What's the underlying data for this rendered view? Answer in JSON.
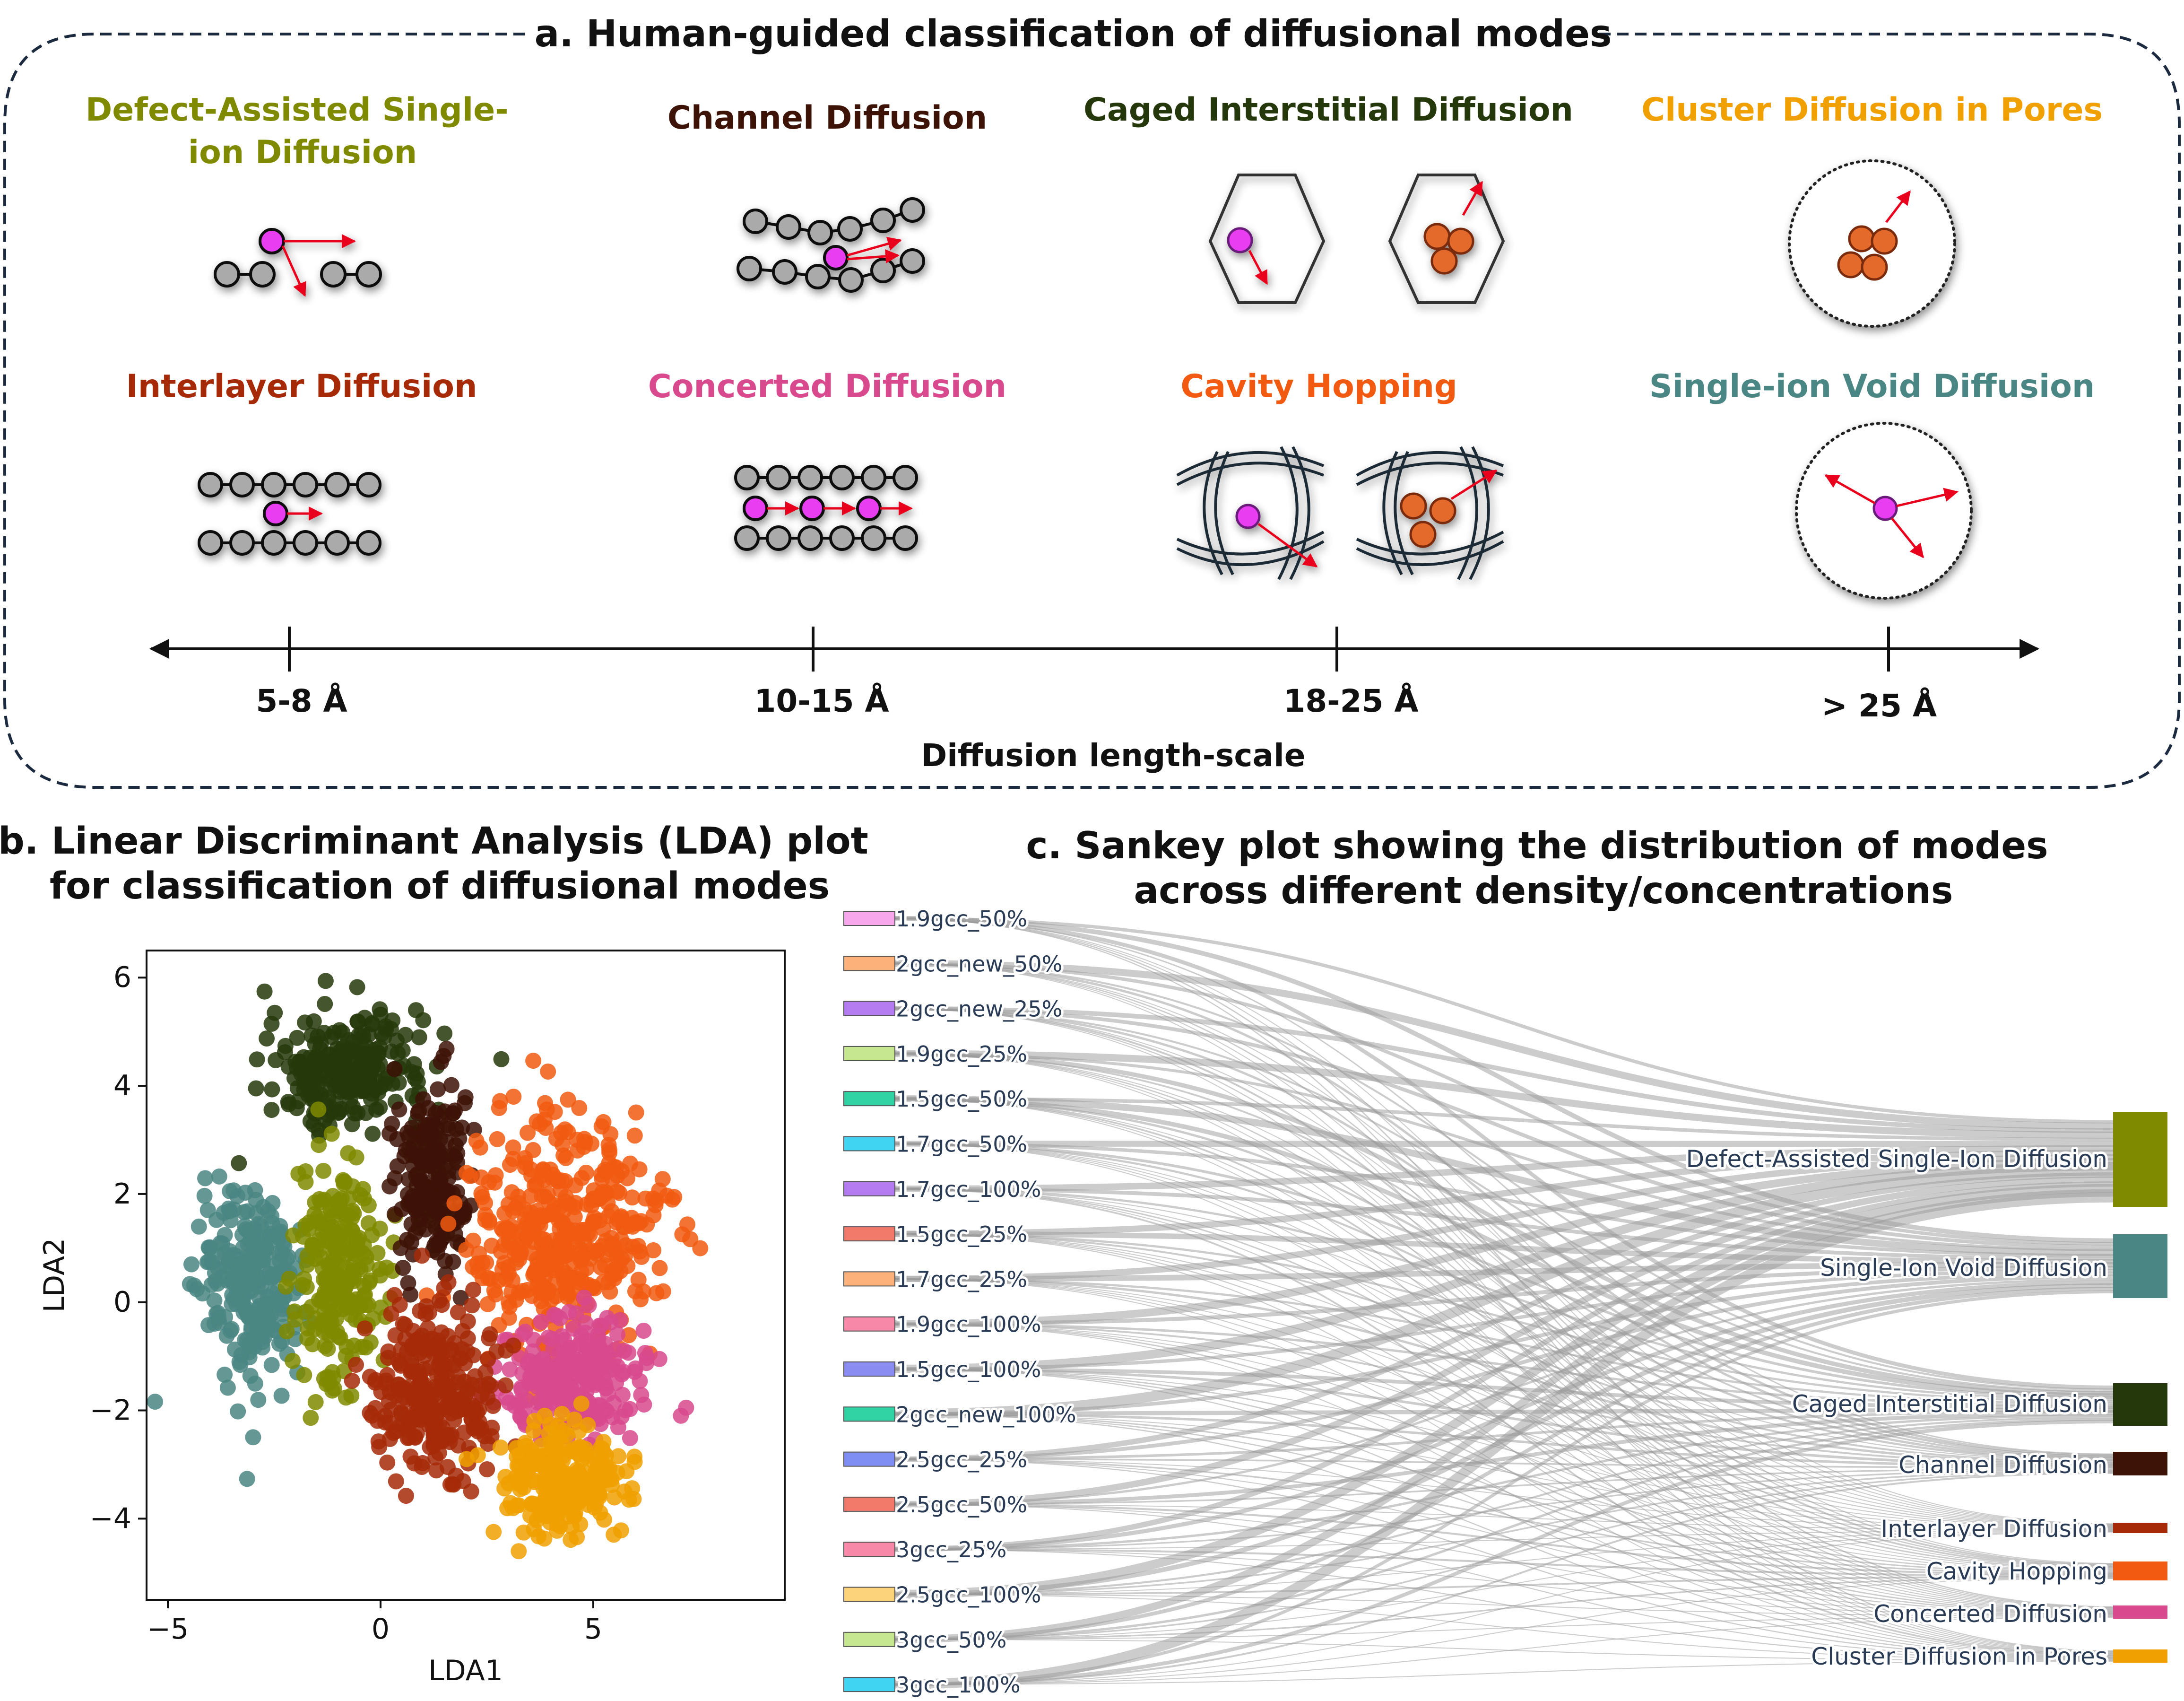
{
  "panel_a": {
    "title": "a. Human-guided classification of diffusional modes",
    "modes": [
      {
        "label_lines": [
          "Defect-Assisted Single-",
          "ion Diffusion"
        ],
        "color": "#7f8a00"
      },
      {
        "label_lines": [
          "Channel Diffusion"
        ],
        "color": "#3d1207"
      },
      {
        "label_lines": [
          "Caged Interstitial Diffusion"
        ],
        "color": "#24380b"
      },
      {
        "label_lines": [
          "Cluster Diffusion in Pores"
        ],
        "color": "#f0a000"
      },
      {
        "label_lines": [
          "Interlayer Diffusion"
        ],
        "color": "#a62a08"
      },
      {
        "label_lines": [
          "Concerted Diffusion"
        ],
        "color": "#d8498d"
      },
      {
        "label_lines": [
          "Cavity Hopping"
        ],
        "color": "#f15a10"
      },
      {
        "label_lines": [
          "Single-ion Void Diffusion"
        ],
        "color": "#4a8683"
      }
    ],
    "axis_ticks": [
      "5-8 Å",
      "10-15 Å",
      "18-25 Å",
      "> 25 Å"
    ],
    "axis_label": "Diffusion length-scale"
  },
  "panel_b": {
    "title_lines": [
      "b. Linear Discriminant Analysis (LDA) plot",
      "for classification of diffusional modes"
    ]
  },
  "panel_c": {
    "title_lines": [
      "c. Sankey plot showing the distribution of modes",
      "across different density/concentrations"
    ]
  },
  "chart_data": [
    {
      "type": "scatter",
      "title": "b. Linear Discriminant Analysis (LDA) plot for classification of diffusional modes",
      "xlabel": "LDA1",
      "ylabel": "LDA2",
      "xlim": [
        -5.5,
        9.5
      ],
      "ylim": [
        -5.5,
        6.5
      ],
      "xticks": [
        -5,
        0,
        5
      ],
      "yticks": [
        -4,
        -2,
        0,
        2,
        4,
        6
      ],
      "xtick_labels": [
        "−5",
        "0",
        "5"
      ],
      "ytick_labels": [
        "−4",
        "−2",
        "0",
        "2",
        "4",
        "6"
      ],
      "grid": false,
      "series": [
        {
          "name": "Caged Interstitial Diffusion",
          "color": "#24380b",
          "center": [
            -0.8,
            4.3
          ],
          "spread": [
            1.7,
            0.9
          ],
          "count": 260
        },
        {
          "name": "Single-Ion Void Diffusion",
          "color": "#4a8683",
          "center": [
            -3.0,
            0.3
          ],
          "spread": [
            1.1,
            1.6
          ],
          "count": 260
        },
        {
          "name": "Defect-Assisted Single-Ion Diffusion",
          "color": "#7f8a00",
          "center": [
            -1.0,
            0.6
          ],
          "spread": [
            0.9,
            1.9
          ],
          "count": 230
        },
        {
          "name": "Channel Diffusion",
          "color": "#3d1207",
          "center": [
            1.2,
            2.3
          ],
          "spread": [
            0.8,
            1.5
          ],
          "count": 200
        },
        {
          "name": "Cavity Hopping",
          "color": "#f15a10",
          "center": [
            4.3,
            1.3
          ],
          "spread": [
            2.0,
            1.9
          ],
          "count": 420
        },
        {
          "name": "Concerted Diffusion",
          "color": "#d8498d",
          "center": [
            4.6,
            -1.4
          ],
          "spread": [
            1.6,
            1.0
          ],
          "count": 240
        },
        {
          "name": "Interlayer Diffusion",
          "color": "#a62a08",
          "center": [
            1.3,
            -1.7
          ],
          "spread": [
            1.3,
            1.4
          ],
          "count": 280
        },
        {
          "name": "Cluster Diffusion in Pores",
          "color": "#f0a000",
          "center": [
            4.3,
            -3.3
          ],
          "spread": [
            1.3,
            0.9
          ],
          "count": 230
        }
      ]
    },
    {
      "type": "sankey",
      "title": "c. Sankey plot showing the distribution of modes across different density/concentrations",
      "sources": [
        {
          "name": "1.9gcc_50%",
          "color": "#f7a8ec"
        },
        {
          "name": "2gcc_new_50%",
          "color": "#fcb07a"
        },
        {
          "name": "2gcc_new_25%",
          "color": "#b47cf0"
        },
        {
          "name": "1.9gcc_25%",
          "color": "#c6e78f"
        },
        {
          "name": "1.5gcc_50%",
          "color": "#31d3a5"
        },
        {
          "name": "1.7gcc_50%",
          "color": "#40d3f2"
        },
        {
          "name": "1.7gcc_100%",
          "color": "#b47cf0"
        },
        {
          "name": "1.5gcc_25%",
          "color": "#f27a6a"
        },
        {
          "name": "1.7gcc_25%",
          "color": "#fcb07a"
        },
        {
          "name": "1.9gcc_100%",
          "color": "#f788a8"
        },
        {
          "name": "1.5gcc_100%",
          "color": "#8a8cf2"
        },
        {
          "name": "2gcc_new_100%",
          "color": "#31d3a5"
        },
        {
          "name": "2.5gcc_25%",
          "color": "#7f8ef2"
        },
        {
          "name": "2.5gcc_50%",
          "color": "#f27a6a"
        },
        {
          "name": "3gcc_25%",
          "color": "#f788a8"
        },
        {
          "name": "2.5gcc_100%",
          "color": "#fcd37a"
        },
        {
          "name": "3gcc_50%",
          "color": "#c6e78f"
        },
        {
          "name": "3gcc_100%",
          "color": "#40d3f2"
        }
      ],
      "targets": [
        {
          "name": "Defect-Assisted Single-Ion Diffusion",
          "color": "#7f8a00",
          "share": 0.3
        },
        {
          "name": "Single-Ion Void Diffusion",
          "color": "#4a8683",
          "share": 0.2
        },
        {
          "name": "Caged Interstitial Diffusion",
          "color": "#24380b",
          "share": 0.14
        },
        {
          "name": "Channel Diffusion",
          "color": "#3d1207",
          "share": 0.08
        },
        {
          "name": "Interlayer Diffusion",
          "color": "#a62a08",
          "share": 0.03
        },
        {
          "name": "Cavity Hopping",
          "color": "#f15a10",
          "share": 0.06
        },
        {
          "name": "Concerted Diffusion",
          "color": "#d8498d",
          "share": 0.04
        },
        {
          "name": "Cluster Diffusion in Pores",
          "color": "#f0a000",
          "share": 0.05
        }
      ]
    }
  ]
}
